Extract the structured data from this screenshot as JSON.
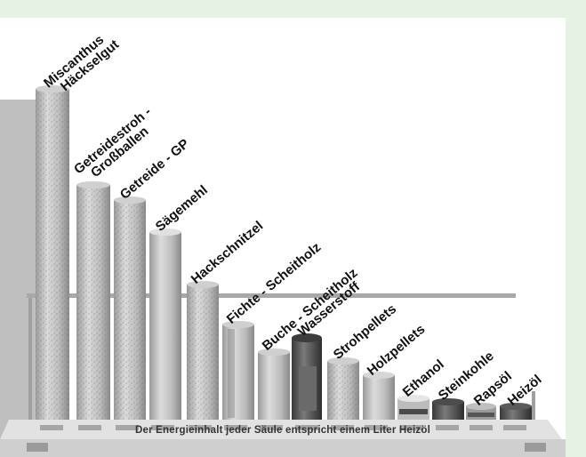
{
  "photo": {
    "description_icon": "energy-comparison-columns-photo",
    "caption": "Der Energieinhalt jeder Säule entspricht einem Liter Heizöl",
    "columns": [
      {
        "id": "miscanthus",
        "lines": [
          "Miscanthus",
          "Häckselgut"
        ]
      },
      {
        "id": "getreidestroh",
        "lines": [
          "Getreidestroh -",
          "Großballen"
        ]
      },
      {
        "id": "getreide-gp",
        "lines": [
          "Getreide - GP"
        ]
      },
      {
        "id": "saegemehl",
        "lines": [
          "Sägemehl"
        ]
      },
      {
        "id": "hackschnitzel",
        "lines": [
          "Hackschnitzel"
        ]
      },
      {
        "id": "fichte",
        "lines": [
          "Fichte - Scheitholz"
        ]
      },
      {
        "id": "buche",
        "lines": [
          "Buche - Scheitholz"
        ]
      },
      {
        "id": "wasserstoff",
        "lines": [
          "Wasserstoff"
        ]
      },
      {
        "id": "strohpellets",
        "lines": [
          "Strohpellets"
        ]
      },
      {
        "id": "holzpellets",
        "lines": [
          "Holzpellets"
        ]
      },
      {
        "id": "ethanol",
        "lines": [
          "Ethanol"
        ]
      },
      {
        "id": "steinkohle",
        "lines": [
          "Steinkohle"
        ]
      },
      {
        "id": "rapsoel",
        "lines": [
          "Rapsöl"
        ]
      },
      {
        "id": "heizoel",
        "lines": [
          "Heizöl"
        ]
      }
    ]
  },
  "colors": {
    "frame": "#e6f2e4",
    "column_light": "#c9c9c9",
    "column_dark": "#555555",
    "base": "#d6d6d6"
  }
}
